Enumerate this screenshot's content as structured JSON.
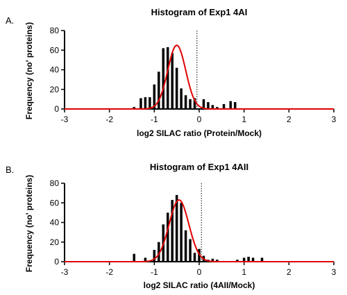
{
  "chart_data": [
    {
      "type": "bar",
      "panel_label": "A.",
      "title": "Histogram of Exp1 4AI",
      "xlabel": "log2 SILAC ratio (Protein/Mock)",
      "ylabel": "Frequency (no' proteins)",
      "xlim": [
        -3,
        3
      ],
      "ylim": [
        0,
        80
      ],
      "xticks": [
        "-3",
        "-2",
        "-1",
        "0",
        "1",
        "2",
        "3"
      ],
      "yticks": [
        "0",
        "20",
        "40",
        "60",
        "80"
      ],
      "reference_line_x": -0.05,
      "x": [
        -1.45,
        -1.3,
        -1.2,
        -1.1,
        -1.0,
        -0.9,
        -0.8,
        -0.7,
        -0.6,
        -0.5,
        -0.4,
        -0.3,
        -0.2,
        -0.1,
        0.1,
        0.2,
        0.3,
        0.4,
        0.55,
        0.7,
        0.8,
        0.9
      ],
      "values": [
        2,
        11,
        12,
        12,
        25,
        38,
        62,
        63,
        57,
        42,
        21,
        14,
        10,
        11,
        10,
        7,
        4,
        2,
        5,
        8,
        7,
        0
      ],
      "fit_curve": {
        "type": "gaussian",
        "amplitude": 65,
        "mean": -0.5,
        "sd": 0.2
      },
      "colors": {
        "bars": "#000000",
        "fit": "#e00000"
      }
    },
    {
      "type": "bar",
      "panel_label": "B.",
      "title": "Histogram of Exp1 4AII",
      "xlabel": "log2 SILAC ratio (4AII/Mock)",
      "ylabel": "Frequency (no' proteins)",
      "xlim": [
        -3,
        3
      ],
      "ylim": [
        0,
        80
      ],
      "xticks": [
        "-3",
        "-2",
        "-1",
        "0",
        "1",
        "2",
        "3"
      ],
      "yticks": [
        "0",
        "20",
        "40",
        "60",
        "80"
      ],
      "reference_line_x": 0.05,
      "x": [
        -1.45,
        -1.2,
        -1.0,
        -0.9,
        -0.8,
        -0.7,
        -0.6,
        -0.5,
        -0.4,
        -0.3,
        -0.2,
        -0.1,
        0.0,
        0.1,
        0.2,
        0.3,
        0.4,
        0.85,
        1.0,
        1.1,
        1.2,
        1.4
      ],
      "values": [
        8,
        4,
        12,
        20,
        38,
        50,
        63,
        68,
        60,
        32,
        23,
        9,
        13,
        6,
        2,
        3,
        2,
        2,
        4,
        5,
        4,
        4
      ],
      "fit_curve": {
        "type": "gaussian",
        "amplitude": 63,
        "mean": -0.45,
        "sd": 0.22
      },
      "colors": {
        "bars": "#000000",
        "fit": "#e00000"
      }
    }
  ]
}
